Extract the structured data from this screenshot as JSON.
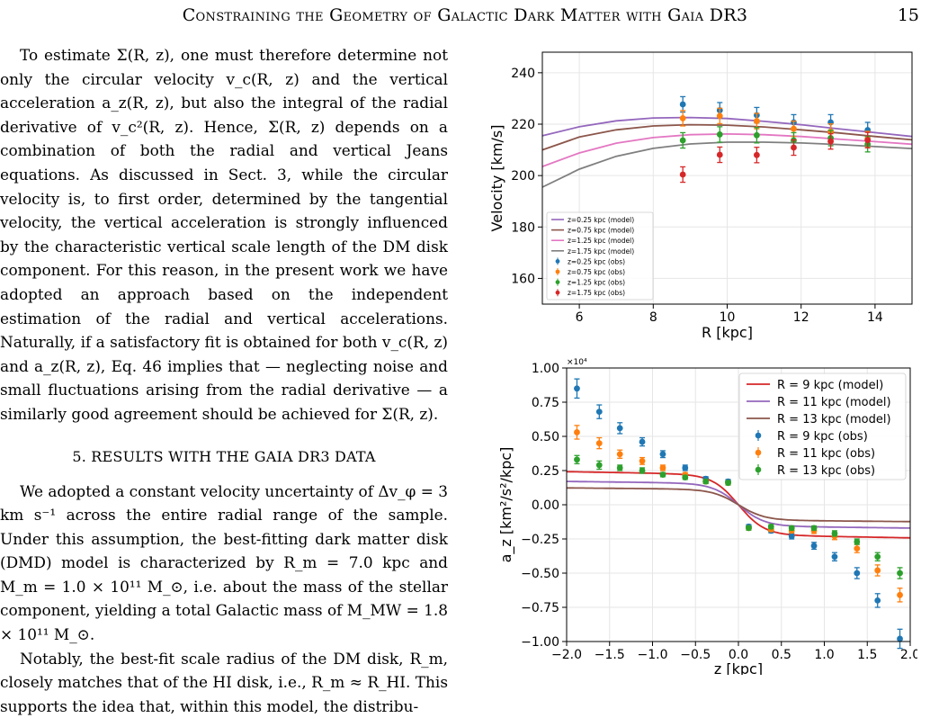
{
  "header": {
    "running_title": "Constraining the Geometry of Galactic Dark Matter with Gaia DR3",
    "page_number": "15"
  },
  "body": {
    "paragraph1": "To estimate Σ(R, z), one must therefore determine not only the circular velocity v_c(R, z) and the vertical acceleration a_z(R, z), but also the integral of the radial derivative of v_c²(R, z). Hence, Σ(R, z) depends on a combination of both the radial and vertical Jeans equations. As discussed in Sect. 3, while the circular velocity is, to first order, determined by the tangential velocity, the vertical acceleration is strongly influenced by the characteristic vertical scale length of the DM disk component. For this reason, in the present work we have adopted an approach based on the independent estimation of the radial and vertical accelerations. Naturally, if a satisfactory fit is obtained for both v_c(R, z) and a_z(R, z), Eq. 46 implies that — neglecting noise and small fluctuations arising from the radial derivative — a similarly good agreement should be achieved for Σ(R, z).",
    "section_heading": "5. RESULTS WITH THE GAIA DR3 DATA",
    "paragraph2": "We adopted a constant velocity uncertainty of Δv_φ = 3 km s⁻¹ across the entire radial range of the sample. Under this assumption, the best-fitting dark matter disk (DMD) model is characterized by R_m = 7.0 kpc and M_m = 1.0 × 10¹¹ M_⊙, i.e. about the mass of the stellar component, yielding a total Galactic mass of M_MW = 1.8 × 10¹¹ M_⊙.",
    "paragraph3": "Notably, the best-fit scale radius of the DM disk, R_m, closely matches that of the HI disk, i.e., R_m ≈ R_HI. This supports the idea that, within this model, the distribu-"
  },
  "chart_data": [
    {
      "type": "scatter",
      "xlabel": "R [kpc]",
      "ylabel": "Velocity [km/s]",
      "xlim": [
        5,
        15
      ],
      "ylim": [
        150,
        248
      ],
      "xticks": [
        6,
        8,
        10,
        12,
        14
      ],
      "yticks": [
        160,
        180,
        200,
        220,
        240
      ],
      "grid": true,
      "legend_position": "lower-left",
      "model_series": [
        {
          "name": "z=0.25 kpc (model)",
          "color": "#9467bd",
          "R": [
            5,
            6,
            7,
            8,
            9,
            10,
            11,
            12,
            13,
            14,
            15
          ],
          "v": [
            215.5,
            219,
            221.3,
            222.4,
            222.6,
            222.2,
            221.1,
            219.8,
            218.2,
            216.7,
            215.2
          ]
        },
        {
          "name": "z=0.75 kpc (model)",
          "color": "#8c564b",
          "R": [
            5,
            6,
            7,
            8,
            9,
            10,
            11,
            12,
            13,
            14,
            15
          ],
          "v": [
            210,
            215,
            217.8,
            219.3,
            219.8,
            219.6,
            218.9,
            217.8,
            216.6,
            215.2,
            213.9
          ]
        },
        {
          "name": "z=1.25 kpc (model)",
          "color": "#e377c2",
          "R": [
            5,
            6,
            7,
            8,
            9,
            10,
            11,
            12,
            13,
            14,
            15
          ],
          "v": [
            203.5,
            208.8,
            212.6,
            214.8,
            215.9,
            216.2,
            215.9,
            215.2,
            214.2,
            213.2,
            212.2
          ]
        },
        {
          "name": "z=1.75 kpc (model)",
          "color": "#7f7f7f",
          "R": [
            5,
            6,
            7,
            8,
            9,
            10,
            11,
            12,
            13,
            14,
            15
          ],
          "v": [
            195.5,
            202.5,
            207.5,
            210.6,
            212.3,
            213,
            213,
            212.7,
            212.1,
            211.3,
            210.5
          ]
        }
      ],
      "obs_series": [
        {
          "name": "z=0.25 kpc (obs)",
          "color": "#1f77b4",
          "R": [
            8.8,
            9.8,
            10.8,
            11.8,
            12.8,
            13.8
          ],
          "v": [
            227.7,
            225.4,
            223.5,
            220.7,
            220.7,
            217.7
          ],
          "err": [
            3,
            3,
            3,
            3,
            3,
            3
          ]
        },
        {
          "name": "z=0.75 kpc (obs)",
          "color": "#ff7f0e",
          "R": [
            8.8,
            9.8,
            10.8,
            11.8,
            12.8,
            13.8
          ],
          "v": [
            222.3,
            223.2,
            221.2,
            218.2,
            217.1,
            214.2
          ],
          "err": [
            3,
            3,
            3,
            3,
            3,
            3
          ]
        },
        {
          "name": "z=1.25 kpc (obs)",
          "color": "#2ca02c",
          "R": [
            8.8,
            9.8,
            10.8,
            11.8,
            12.8,
            13.8
          ],
          "v": [
            213.7,
            216,
            215.7,
            213.7,
            214.6,
            212.2
          ],
          "err": [
            3,
            3,
            3,
            3,
            3,
            3
          ]
        },
        {
          "name": "z=1.75 kpc (obs)",
          "color": "#d62728",
          "R": [
            8.8,
            9.8,
            10.8,
            11.8,
            12.8,
            13.8
          ],
          "v": [
            200.4,
            208.1,
            208,
            210.9,
            213.3,
            213.8
          ],
          "err": [
            3,
            3,
            3,
            3,
            3,
            3
          ]
        }
      ]
    },
    {
      "type": "scatter",
      "xlabel": "z [kpc]",
      "ylabel": "a_z [km²/s²/kpc]",
      "scale_label": "×10⁴",
      "xlim": [
        -2.0,
        2.0
      ],
      "ylim": [
        -1.0,
        1.0
      ],
      "xticks": [
        -2.0,
        -1.5,
        -1.0,
        -0.5,
        0.0,
        0.5,
        1.0,
        1.5,
        2.0
      ],
      "yticks": [
        -1.0,
        -0.75,
        -0.5,
        -0.25,
        0.0,
        0.25,
        0.5,
        0.75,
        1.0
      ],
      "grid": true,
      "legend_position": "upper-right",
      "model_series": [
        {
          "name": "R = 9  kpc (model)",
          "color": "#d62728",
          "amp": 0.22
        },
        {
          "name": "R = 11 kpc (model)",
          "color": "#9467bd",
          "amp": 0.155
        },
        {
          "name": "R = 13 kpc (model)",
          "color": "#8c564b",
          "amp": 0.112
        }
      ],
      "obs_series": [
        {
          "name": "R = 9 kpc (obs)",
          "color": "#1f77b4",
          "z": [
            -1.88,
            -1.62,
            -1.38,
            -1.12,
            -0.88,
            -0.62,
            -0.38,
            -0.12,
            0.12,
            0.38,
            0.62,
            0.88,
            1.12,
            1.38,
            1.62,
            1.88
          ],
          "a": [
            0.85,
            0.68,
            0.56,
            0.46,
            0.37,
            0.27,
            0.19,
            0.17,
            -0.16,
            -0.19,
            -0.23,
            -0.3,
            -0.38,
            -0.5,
            -0.7,
            -0.98
          ],
          "err": [
            0.07,
            0.05,
            0.04,
            0.03,
            0.025,
            0.02,
            0.015,
            0.015,
            0.015,
            0.015,
            0.02,
            0.025,
            0.03,
            0.04,
            0.05,
            0.07
          ]
        },
        {
          "name": "R = 11 kpc (obs)",
          "color": "#ff7f0e",
          "z": [
            -1.88,
            -1.62,
            -1.38,
            -1.12,
            -0.88,
            -0.62,
            -0.38,
            -0.12,
            0.12,
            0.38,
            0.62,
            0.88,
            1.12,
            1.38,
            1.62,
            1.88
          ],
          "a": [
            0.53,
            0.45,
            0.37,
            0.32,
            0.27,
            0.22,
            0.17,
            0.16,
            -0.17,
            -0.18,
            -0.19,
            -0.19,
            -0.23,
            -0.32,
            -0.48,
            -0.66
          ],
          "err": [
            0.05,
            0.04,
            0.03,
            0.025,
            0.02,
            0.015,
            0.015,
            0.015,
            0.015,
            0.015,
            0.015,
            0.02,
            0.025,
            0.03,
            0.04,
            0.05
          ]
        },
        {
          "name": "R = 13 kpc (obs)",
          "color": "#2ca02c",
          "z": [
            -1.88,
            -1.62,
            -1.38,
            -1.12,
            -0.88,
            -0.62,
            -0.38,
            -0.12,
            0.12,
            0.38,
            0.62,
            0.88,
            1.12,
            1.38,
            1.62,
            1.88
          ],
          "a": [
            0.33,
            0.29,
            0.27,
            0.25,
            0.22,
            0.2,
            0.17,
            0.16,
            -0.17,
            -0.16,
            -0.17,
            -0.17,
            -0.21,
            -0.27,
            -0.38,
            -0.5
          ],
          "err": [
            0.03,
            0.03,
            0.02,
            0.02,
            0.015,
            0.015,
            0.015,
            0.015,
            0.015,
            0.015,
            0.015,
            0.015,
            0.02,
            0.02,
            0.03,
            0.04
          ]
        }
      ]
    }
  ]
}
